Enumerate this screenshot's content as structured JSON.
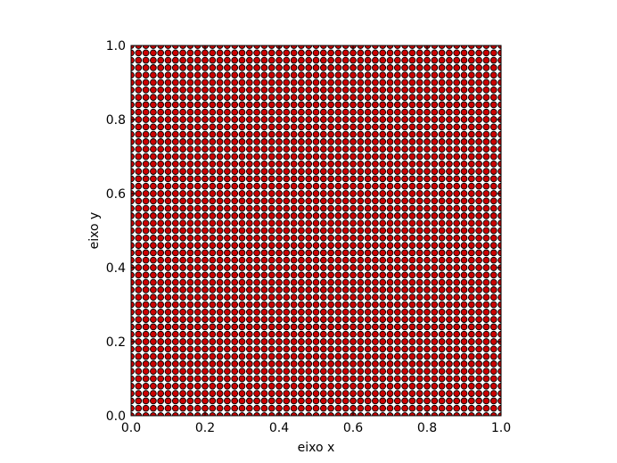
{
  "chart_data": {
    "type": "scatter",
    "title": "",
    "xlabel": "eixo x",
    "ylabel": "eixo y",
    "xlim": [
      0.0,
      1.0
    ],
    "ylim": [
      0.0,
      1.0
    ],
    "xticks": [
      "0.0",
      "0.2",
      "0.4",
      "0.6",
      "0.8",
      "1.0"
    ],
    "yticks": [
      "0.0",
      "0.2",
      "0.4",
      "0.6",
      "0.8",
      "1.0"
    ],
    "grid": false,
    "legend": "none",
    "point_grid": {
      "description": "uniform lattice of points covering the unit square",
      "x_start": 0.0,
      "x_end": 1.0,
      "x_count": 51,
      "y_start": 0.0,
      "y_end": 1.0,
      "y_count": 51
    },
    "series": [
      {
        "marker_color": "#cc0000",
        "edge_color": "#000000"
      }
    ]
  }
}
